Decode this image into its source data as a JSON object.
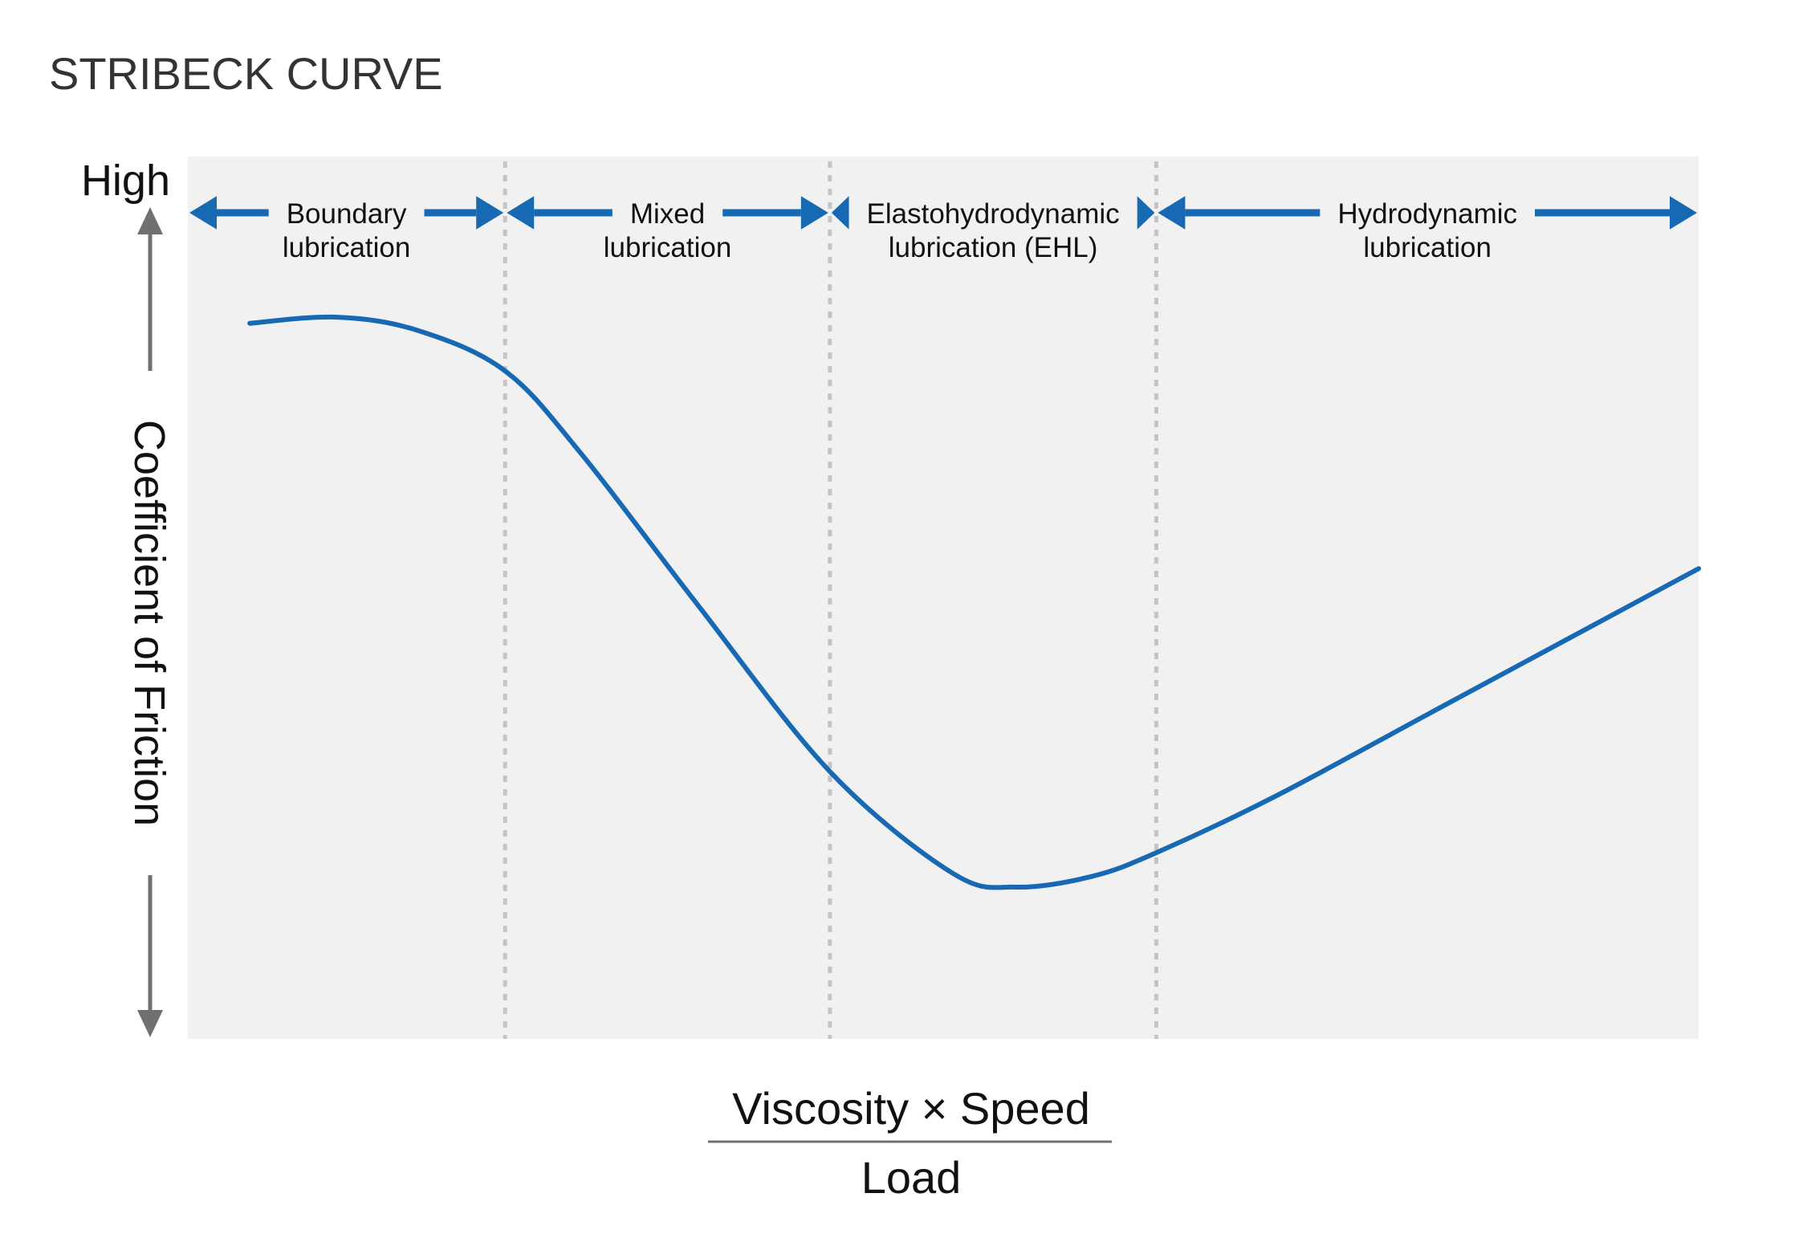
{
  "chart_data": {
    "type": "line",
    "title": "STRIBECK CURVE",
    "ylabel": "Coefficient of Friction",
    "ylabel_top": "High",
    "xlabel_numerator": "Viscosity × Speed",
    "xlabel_denominator": "Load",
    "xlim": [
      0,
      100
    ],
    "ylim": [
      0,
      100
    ],
    "grid": false,
    "colors": {
      "curve": "#1769b3",
      "arrows": "#1769b3",
      "background": "#f1f1f1",
      "divider": "#c4c4c4",
      "axis": "#707070",
      "text": "#111111",
      "title": "#333333"
    },
    "regions": [
      {
        "line1": "Boundary",
        "line2": "lubrication",
        "start": 0,
        "end": 21.0
      },
      {
        "line1": "Mixed",
        "line2": "lubrication",
        "start": 21.0,
        "end": 42.5
      },
      {
        "line1": "Elastohydrodynamic",
        "line2": "lubrication (EHL)",
        "start": 42.5,
        "end": 64.1
      },
      {
        "line1": "Hydrodynamic",
        "line2": "lubrication",
        "start": 64.1,
        "end": 100
      }
    ],
    "series": [
      {
        "x": [
          4.1,
          9.8,
          15.2,
          21.0,
          26.0,
          33.7,
          42.5,
          50.6,
          54.8,
          59.8,
          64.1,
          72.1,
          83.6,
          100
        ],
        "y": [
          81.1,
          81.8,
          80.3,
          75.7,
          66.4,
          49.3,
          30.3,
          18.8,
          17.2,
          18.4,
          21.1,
          27.6,
          38.2,
          53.3
        ]
      }
    ]
  }
}
